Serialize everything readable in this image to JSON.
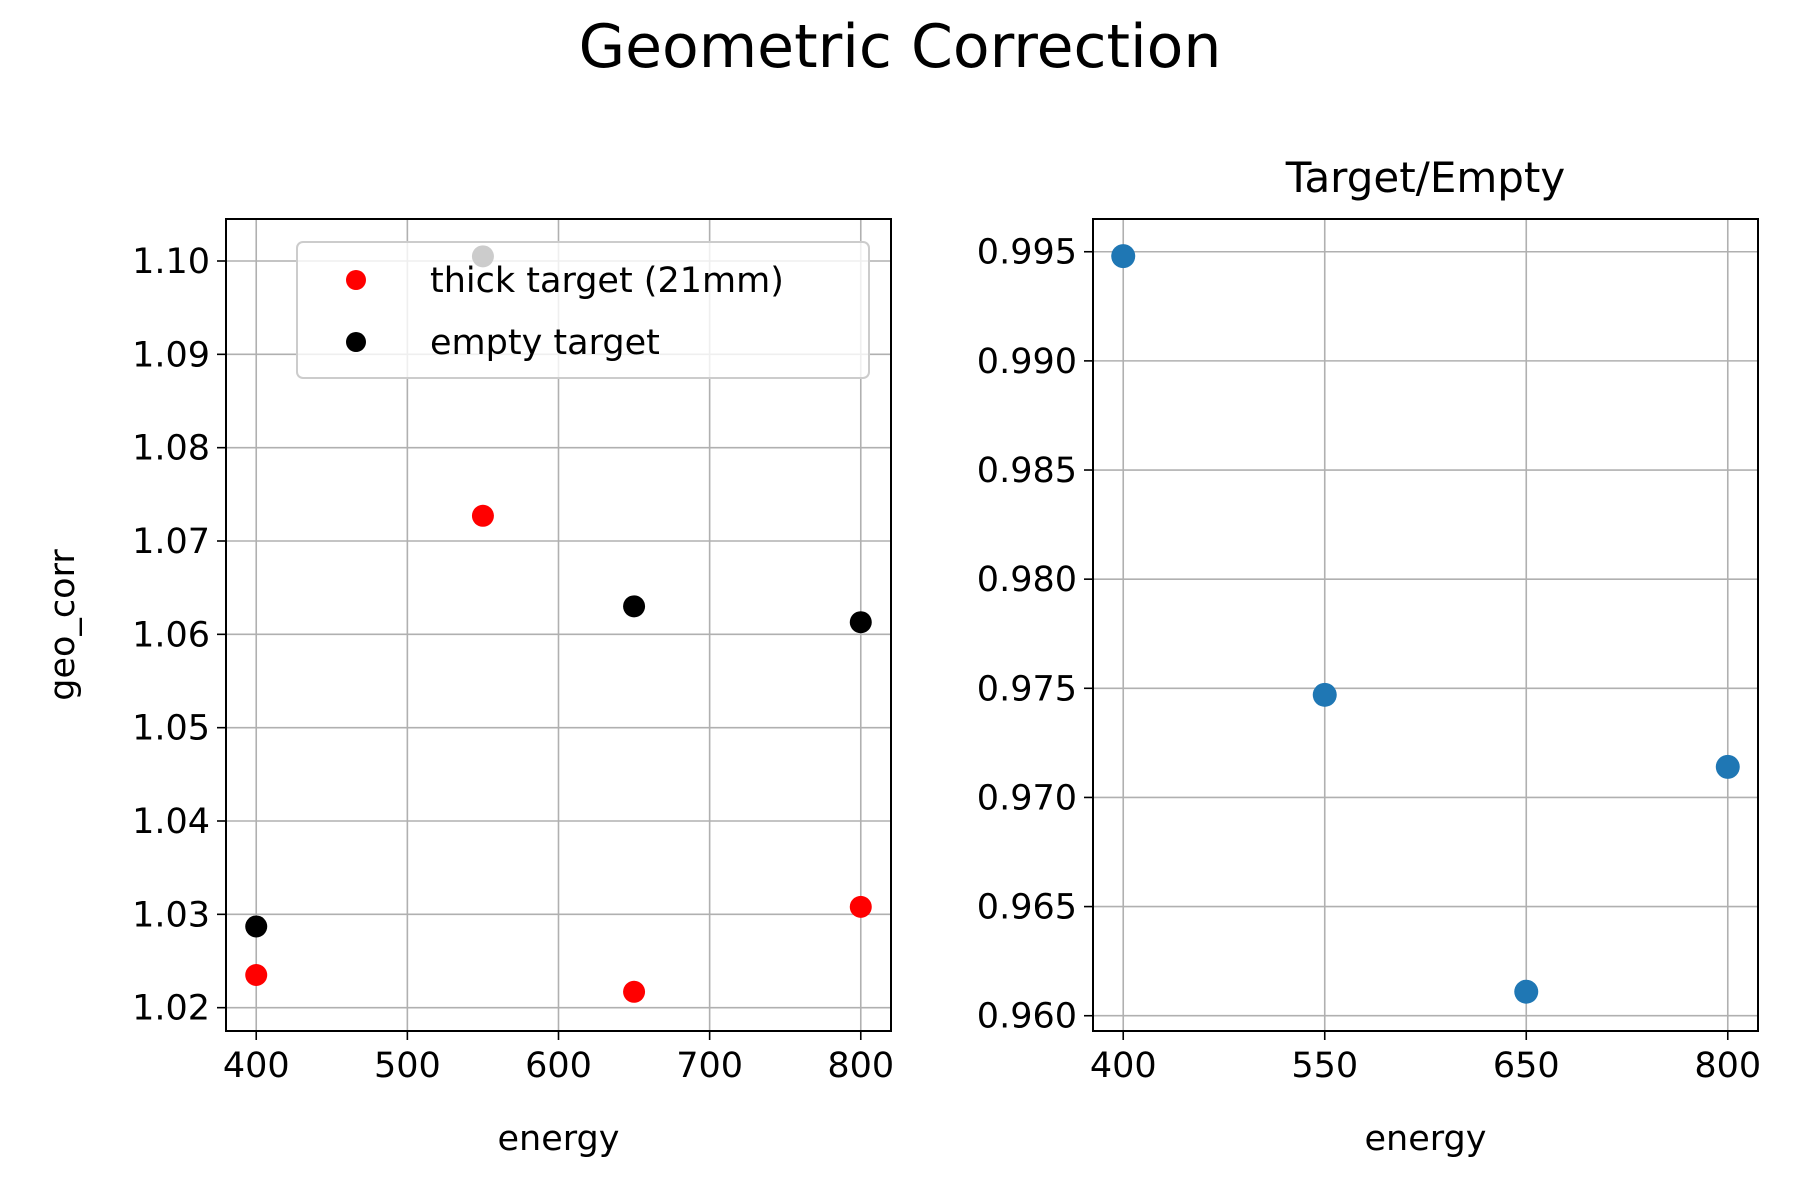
{
  "suptitle": "Geometric Correction",
  "chart_data": [
    {
      "type": "scatter",
      "title": "",
      "xlabel": "energy",
      "ylabel": "geo_corr",
      "xlim": [
        380,
        820
      ],
      "ylim": [
        1.0175,
        1.1045
      ],
      "xticks": [
        400,
        500,
        600,
        700,
        800
      ],
      "xtick_labels": [
        "400",
        "500",
        "600",
        "700",
        "800"
      ],
      "yticks": [
        1.02,
        1.03,
        1.04,
        1.05,
        1.06,
        1.07,
        1.08,
        1.09,
        1.1
      ],
      "ytick_labels": [
        "1.02",
        "1.03",
        "1.04",
        "1.05",
        "1.06",
        "1.07",
        "1.08",
        "1.09",
        "1.10"
      ],
      "grid": true,
      "legend_position": "upper right",
      "series": [
        {
          "name": "thick target (21mm)",
          "color": "#ff0000",
          "x": [
            400,
            550,
            650,
            800
          ],
          "y": [
            1.0235,
            1.0727,
            1.0217,
            1.0308
          ]
        },
        {
          "name": "empty target",
          "color": "#000000",
          "x": [
            400,
            550,
            650,
            800
          ],
          "y": [
            1.0287,
            1.1005,
            1.063,
            1.0613
          ]
        }
      ]
    },
    {
      "type": "scatter",
      "title": "Target/Empty",
      "xlabel": "energy",
      "ylabel": "",
      "xlim": [
        0.85,
        4.15
      ],
      "ylim": [
        0.9593,
        0.9965
      ],
      "xticks": [
        1,
        2,
        3,
        4
      ],
      "xtick_labels": [
        "400",
        "550",
        "650",
        "800"
      ],
      "yticks": [
        0.96,
        0.965,
        0.97,
        0.975,
        0.98,
        0.985,
        0.99,
        0.995
      ],
      "ytick_labels": [
        "0.960",
        "0.965",
        "0.970",
        "0.975",
        "0.980",
        "0.985",
        "0.990",
        "0.995"
      ],
      "grid": true,
      "series": [
        {
          "name": "",
          "color": "#1f77b4",
          "x": [
            1,
            2,
            3,
            4
          ],
          "y": [
            0.9948,
            0.9747,
            0.9611,
            0.9714
          ]
        }
      ]
    }
  ]
}
